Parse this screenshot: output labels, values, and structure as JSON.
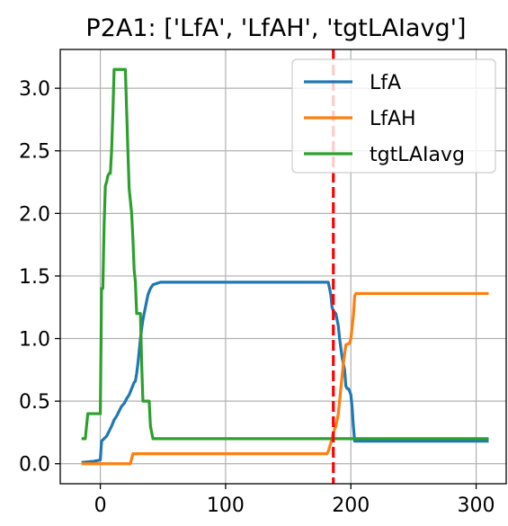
{
  "chart_data": {
    "type": "line",
    "title": "P2A1: ['LfA', 'LfAH', 'tgtLAIavg']",
    "xlabel": "",
    "ylabel": "",
    "xlim": [
      -32,
      324
    ],
    "ylim": [
      -0.16,
      3.31
    ],
    "xticks": [
      0,
      100,
      200,
      300
    ],
    "xtick_labels": [
      "0",
      "100",
      "200",
      "300"
    ],
    "yticks": [
      0.0,
      0.5,
      1.0,
      1.5,
      2.0,
      2.5,
      3.0
    ],
    "ytick_labels": [
      "0.0",
      "0.5",
      "1.0",
      "1.5",
      "2.0",
      "2.5",
      "3.0"
    ],
    "grid": true,
    "legend": {
      "placement": "upper right"
    },
    "vline": {
      "x": 186,
      "color": "#ff0000",
      "style": "dashed"
    },
    "series": [
      {
        "name": "LfA",
        "color": "#1f77b4",
        "x": [
          -15,
          -5,
          0,
          1,
          3,
          5,
          7,
          9,
          11,
          13,
          15,
          17,
          19,
          21,
          23,
          25,
          27,
          28,
          29,
          30,
          31,
          32,
          33,
          34,
          35,
          36,
          37,
          38,
          40,
          42,
          45,
          48,
          55,
          70,
          100,
          150,
          182,
          184,
          185,
          186,
          188,
          190,
          191,
          193,
          195,
          196,
          197,
          198,
          199,
          200,
          201,
          202,
          203,
          205,
          210,
          230,
          260,
          290,
          310
        ],
        "y": [
          0.01,
          0.02,
          0.03,
          0.18,
          0.2,
          0.22,
          0.26,
          0.3,
          0.35,
          0.38,
          0.42,
          0.46,
          0.48,
          0.52,
          0.55,
          0.6,
          0.65,
          0.66,
          0.72,
          0.8,
          0.9,
          1.0,
          1.08,
          1.15,
          1.2,
          1.25,
          1.3,
          1.35,
          1.4,
          1.43,
          1.44,
          1.45,
          1.45,
          1.45,
          1.45,
          1.45,
          1.45,
          1.35,
          1.25,
          1.22,
          1.2,
          1.1,
          1.0,
          0.85,
          0.75,
          0.62,
          0.6,
          0.6,
          0.58,
          0.55,
          0.45,
          0.3,
          0.18,
          0.18,
          0.18,
          0.18,
          0.18,
          0.18,
          0.18
        ]
      },
      {
        "name": "LfAH",
        "color": "#ff7f0e",
        "x": [
          -15,
          0,
          24,
          26,
          60,
          120,
          181,
          182,
          185,
          186,
          188,
          189,
          190,
          191,
          192,
          194,
          196,
          198,
          199,
          200,
          202,
          203,
          204,
          210,
          250,
          300,
          310
        ],
        "y": [
          0.0,
          0.0,
          0.0,
          0.08,
          0.08,
          0.08,
          0.08,
          0.1,
          0.2,
          0.25,
          0.3,
          0.35,
          0.4,
          0.5,
          0.6,
          0.8,
          0.95,
          0.96,
          0.96,
          1.0,
          1.18,
          1.34,
          1.36,
          1.36,
          1.36,
          1.36,
          1.36
        ]
      },
      {
        "name": "tgtLAIavg",
        "color": "#2ca02c",
        "x": [
          -15,
          -12,
          -11,
          -10,
          -8,
          -5,
          -2,
          0,
          1,
          2,
          3,
          4,
          5,
          6,
          7,
          8,
          9,
          10,
          11,
          12,
          13,
          20,
          22,
          23,
          24,
          25,
          26,
          27,
          28,
          29,
          30,
          31,
          32,
          33,
          34,
          35,
          36,
          37,
          38,
          39,
          40,
          42,
          50,
          100,
          150,
          200,
          250,
          310
        ],
        "y": [
          0.2,
          0.2,
          0.3,
          0.4,
          0.4,
          0.4,
          0.4,
          0.4,
          1.4,
          1.4,
          1.9,
          2.22,
          2.25,
          2.3,
          2.32,
          2.32,
          2.5,
          2.8,
          3.15,
          3.15,
          3.15,
          3.15,
          2.5,
          2.2,
          2.1,
          2.0,
          1.8,
          1.55,
          1.45,
          1.2,
          1.2,
          1.2,
          1.2,
          0.8,
          0.5,
          0.5,
          0.5,
          0.5,
          0.5,
          0.5,
          0.3,
          0.2,
          0.2,
          0.2,
          0.2,
          0.2,
          0.2,
          0.2
        ]
      }
    ]
  }
}
